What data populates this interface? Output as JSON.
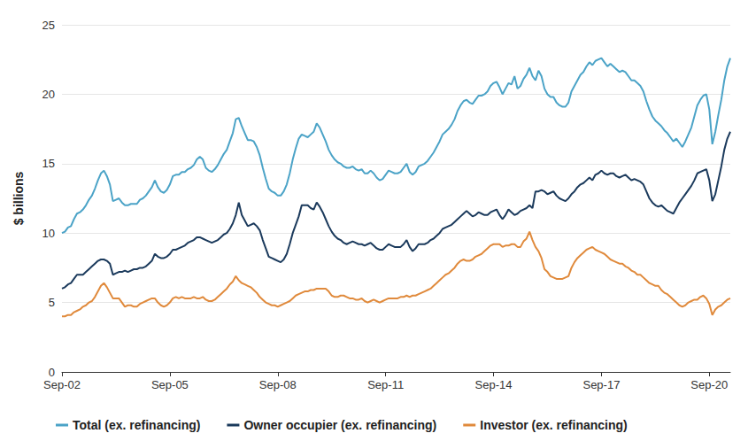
{
  "chart_data": {
    "type": "line",
    "y_label": "$ billions",
    "ylim": [
      0,
      25
    ],
    "yticks": [
      0,
      5,
      10,
      15,
      20,
      25
    ],
    "grid": true,
    "legend": "bottom",
    "categories": [
      "Sep-02",
      null,
      null,
      null,
      null,
      null,
      null,
      null,
      null,
      null,
      null,
      null,
      null,
      null,
      null,
      null,
      null,
      null,
      null,
      null,
      null,
      null,
      null,
      null,
      null,
      null,
      null,
      null,
      null,
      null,
      null,
      null,
      null,
      null,
      null,
      null,
      "Sep-05",
      null,
      null,
      null,
      null,
      null,
      null,
      null,
      null,
      null,
      null,
      null,
      null,
      null,
      null,
      null,
      null,
      null,
      null,
      null,
      null,
      null,
      null,
      null,
      null,
      null,
      null,
      null,
      null,
      null,
      null,
      null,
      null,
      null,
      null,
      null,
      "Sep-08",
      null,
      null,
      null,
      null,
      null,
      null,
      null,
      null,
      null,
      null,
      null,
      null,
      null,
      null,
      null,
      null,
      null,
      null,
      null,
      null,
      null,
      null,
      null,
      null,
      null,
      null,
      null,
      null,
      null,
      null,
      null,
      null,
      null,
      null,
      null,
      "Sep-11",
      null,
      null,
      null,
      null,
      null,
      null,
      null,
      null,
      null,
      null,
      null,
      null,
      null,
      null,
      null,
      null,
      null,
      null,
      null,
      null,
      null,
      null,
      null,
      null,
      null,
      null,
      null,
      null,
      null,
      null,
      null,
      null,
      null,
      null,
      null,
      "Sep-14",
      null,
      null,
      null,
      null,
      null,
      null,
      null,
      null,
      null,
      null,
      null,
      null,
      null,
      null,
      null,
      null,
      null,
      null,
      null,
      null,
      null,
      null,
      null,
      null,
      null,
      null,
      null,
      null,
      null,
      null,
      null,
      null,
      null,
      null,
      null,
      "Sep-17",
      null,
      null,
      null,
      null,
      null,
      null,
      null,
      null,
      null,
      null,
      null,
      null,
      null,
      null,
      null,
      null,
      null,
      null,
      null,
      null,
      null,
      null,
      null,
      null,
      null,
      null,
      null,
      null,
      null,
      null,
      null,
      null,
      null,
      null,
      null,
      "Sep-20",
      null,
      null,
      null,
      null,
      null,
      null,
      null
    ],
    "series": [
      {
        "name": "Total (ex. refinancing)",
        "color": "#4ba3c7",
        "values": [
          10.0,
          10.1,
          10.4,
          10.5,
          11.0,
          11.4,
          11.5,
          11.7,
          12.0,
          12.4,
          12.7,
          13.2,
          13.8,
          14.3,
          14.5,
          14.1,
          13.5,
          12.3,
          12.4,
          12.5,
          12.2,
          12.0,
          12.0,
          12.1,
          12.1,
          12.1,
          12.4,
          12.5,
          12.7,
          13.0,
          13.3,
          13.8,
          13.3,
          13.0,
          12.9,
          13.1,
          13.5,
          14.1,
          14.2,
          14.2,
          14.4,
          14.4,
          14.6,
          14.7,
          14.9,
          15.3,
          15.5,
          15.3,
          14.7,
          14.5,
          14.4,
          14.6,
          14.9,
          15.3,
          15.7,
          16.0,
          16.6,
          17.2,
          18.2,
          18.3,
          17.7,
          17.2,
          16.7,
          16.7,
          16.6,
          16.2,
          15.6,
          14.7,
          13.9,
          13.2,
          13.0,
          12.9,
          12.7,
          12.7,
          13.0,
          13.5,
          14.3,
          15.3,
          16.1,
          16.8,
          17.1,
          17.0,
          16.9,
          17.1,
          17.3,
          17.9,
          17.6,
          17.1,
          16.6,
          16.0,
          15.6,
          15.3,
          15.1,
          15.0,
          14.8,
          14.7,
          14.7,
          14.8,
          14.6,
          14.5,
          14.6,
          14.3,
          14.3,
          14.5,
          14.3,
          14.0,
          13.8,
          13.9,
          14.2,
          14.5,
          14.4,
          14.3,
          14.3,
          14.4,
          14.7,
          15.0,
          14.4,
          14.2,
          14.4,
          14.8,
          14.9,
          15.0,
          15.2,
          15.5,
          15.8,
          16.2,
          16.6,
          17.1,
          17.3,
          17.5,
          17.8,
          18.2,
          18.8,
          19.2,
          19.5,
          19.6,
          19.4,
          19.3,
          19.6,
          19.9,
          19.9,
          20.0,
          20.2,
          20.6,
          20.8,
          20.9,
          20.5,
          20.0,
          20.4,
          20.8,
          20.7,
          21.3,
          20.4,
          20.6,
          21.1,
          21.4,
          21.9,
          21.3,
          21.0,
          21.7,
          21.3,
          20.4,
          20.0,
          19.8,
          19.8,
          19.4,
          19.2,
          19.1,
          19.1,
          19.4,
          20.2,
          20.6,
          21.0,
          21.4,
          21.6,
          22.0,
          22.3,
          22.1,
          22.4,
          22.5,
          22.6,
          22.3,
          22.0,
          22.2,
          22.0,
          21.8,
          21.6,
          21.7,
          21.6,
          21.3,
          21.0,
          21.0,
          20.8,
          20.6,
          20.2,
          19.5,
          18.9,
          18.4,
          18.1,
          17.9,
          17.7,
          17.4,
          17.2,
          16.9,
          16.6,
          16.8,
          16.5,
          16.2,
          16.6,
          17.1,
          17.6,
          18.4,
          19.2,
          19.6,
          19.9,
          20.0,
          18.9,
          16.4,
          17.3,
          18.5,
          19.6,
          21.0,
          22.0,
          22.6
        ]
      },
      {
        "name": "Owner occupier (ex. refinancing)",
        "color": "#1b3a5c",
        "values": [
          6.0,
          6.1,
          6.3,
          6.4,
          6.7,
          7.0,
          7.0,
          7.0,
          7.2,
          7.4,
          7.6,
          7.8,
          8.0,
          8.1,
          8.1,
          8.0,
          7.8,
          7.0,
          7.1,
          7.2,
          7.2,
          7.3,
          7.2,
          7.3,
          7.4,
          7.4,
          7.5,
          7.5,
          7.6,
          7.8,
          8.0,
          8.5,
          8.3,
          8.2,
          8.2,
          8.3,
          8.5,
          8.8,
          8.8,
          8.9,
          9.0,
          9.1,
          9.3,
          9.4,
          9.5,
          9.7,
          9.7,
          9.6,
          9.5,
          9.4,
          9.3,
          9.4,
          9.5,
          9.7,
          9.9,
          10.0,
          10.3,
          10.7,
          11.3,
          12.2,
          11.3,
          10.9,
          10.5,
          10.6,
          10.7,
          10.5,
          10.2,
          9.5,
          8.9,
          8.3,
          8.2,
          8.1,
          8.0,
          7.9,
          8.1,
          8.5,
          9.2,
          10.0,
          10.6,
          11.2,
          12.0,
          12.0,
          12.0,
          11.8,
          11.7,
          12.2,
          11.9,
          11.5,
          11.0,
          10.5,
          10.1,
          9.8,
          9.6,
          9.5,
          9.3,
          9.2,
          9.3,
          9.4,
          9.3,
          9.2,
          9.2,
          9.1,
          9.2,
          9.3,
          9.1,
          8.9,
          8.8,
          8.8,
          9.0,
          9.2,
          9.1,
          9.0,
          9.0,
          9.0,
          9.2,
          9.5,
          9.0,
          8.7,
          8.9,
          9.2,
          9.2,
          9.2,
          9.3,
          9.5,
          9.6,
          9.8,
          10.0,
          10.3,
          10.4,
          10.5,
          10.6,
          10.8,
          11.0,
          11.2,
          11.4,
          11.6,
          11.4,
          11.2,
          11.3,
          11.5,
          11.4,
          11.3,
          11.3,
          11.5,
          11.6,
          11.7,
          11.3,
          11.0,
          11.3,
          11.7,
          11.5,
          11.3,
          11.4,
          11.6,
          11.7,
          11.8,
          12.0,
          11.8,
          13.0,
          13.0,
          13.1,
          13.0,
          12.8,
          12.9,
          13.0,
          12.7,
          12.5,
          12.4,
          12.3,
          12.5,
          12.8,
          13.0,
          13.3,
          13.5,
          13.6,
          13.8,
          14.0,
          13.8,
          14.2,
          14.3,
          14.5,
          14.3,
          14.2,
          14.3,
          14.3,
          14.1,
          14.0,
          14.1,
          14.2,
          14.0,
          13.8,
          13.9,
          13.8,
          13.7,
          13.5,
          13.0,
          12.5,
          12.2,
          12.0,
          11.9,
          12.0,
          11.8,
          11.6,
          11.5,
          11.4,
          11.8,
          12.2,
          12.5,
          12.8,
          13.1,
          13.4,
          13.8,
          14.3,
          14.4,
          14.5,
          14.6,
          13.8,
          12.3,
          12.8,
          13.8,
          14.8,
          16.0,
          16.8,
          17.3
        ]
      },
      {
        "name": "Investor (ex. refinancing)",
        "color": "#e08a3c",
        "values": [
          4.0,
          4.0,
          4.1,
          4.1,
          4.3,
          4.4,
          4.5,
          4.7,
          4.8,
          5.0,
          5.1,
          5.4,
          5.8,
          6.2,
          6.4,
          6.1,
          5.7,
          5.3,
          5.3,
          5.3,
          5.0,
          4.7,
          4.8,
          4.8,
          4.7,
          4.7,
          4.9,
          5.0,
          5.1,
          5.2,
          5.3,
          5.3,
          5.0,
          4.8,
          4.7,
          4.8,
          5.0,
          5.3,
          5.4,
          5.3,
          5.4,
          5.3,
          5.3,
          5.3,
          5.4,
          5.3,
          5.3,
          5.4,
          5.2,
          5.1,
          5.1,
          5.2,
          5.4,
          5.6,
          5.8,
          6.0,
          6.3,
          6.5,
          6.9,
          6.6,
          6.4,
          6.3,
          6.2,
          6.1,
          5.9,
          5.7,
          5.4,
          5.2,
          5.0,
          4.9,
          4.8,
          4.8,
          4.7,
          4.8,
          4.9,
          5.0,
          5.1,
          5.3,
          5.5,
          5.6,
          5.7,
          5.8,
          5.8,
          5.9,
          5.9,
          6.0,
          6.0,
          6.0,
          6.0,
          5.8,
          5.5,
          5.4,
          5.4,
          5.5,
          5.5,
          5.4,
          5.3,
          5.3,
          5.2,
          5.2,
          5.3,
          5.1,
          5.0,
          5.1,
          5.2,
          5.1,
          5.0,
          5.1,
          5.2,
          5.3,
          5.3,
          5.3,
          5.3,
          5.4,
          5.4,
          5.5,
          5.4,
          5.5,
          5.5,
          5.6,
          5.7,
          5.8,
          5.9,
          6.0,
          6.2,
          6.4,
          6.6,
          6.8,
          7.0,
          7.1,
          7.3,
          7.5,
          7.8,
          8.0,
          8.1,
          8.0,
          8.0,
          8.1,
          8.3,
          8.4,
          8.5,
          8.7,
          8.9,
          9.1,
          9.2,
          9.2,
          9.2,
          9.0,
          9.1,
          9.1,
          9.2,
          9.2,
          9.0,
          9.0,
          9.4,
          9.6,
          10.1,
          9.5,
          9.0,
          8.7,
          8.2,
          7.4,
          7.2,
          6.9,
          6.8,
          6.7,
          6.7,
          6.7,
          6.8,
          6.9,
          7.5,
          7.9,
          8.2,
          8.4,
          8.6,
          8.8,
          8.9,
          9.0,
          8.8,
          8.7,
          8.6,
          8.5,
          8.3,
          8.1,
          8.0,
          7.9,
          7.8,
          7.8,
          7.6,
          7.5,
          7.3,
          7.2,
          7.0,
          7.0,
          6.8,
          6.6,
          6.4,
          6.3,
          6.2,
          6.2,
          5.9,
          5.7,
          5.6,
          5.4,
          5.2,
          5.0,
          4.8,
          4.7,
          4.8,
          5.0,
          5.1,
          5.2,
          5.2,
          5.4,
          5.5,
          5.3,
          4.9,
          4.1,
          4.5,
          4.7,
          4.8,
          5.0,
          5.2,
          5.3
        ]
      }
    ]
  }
}
